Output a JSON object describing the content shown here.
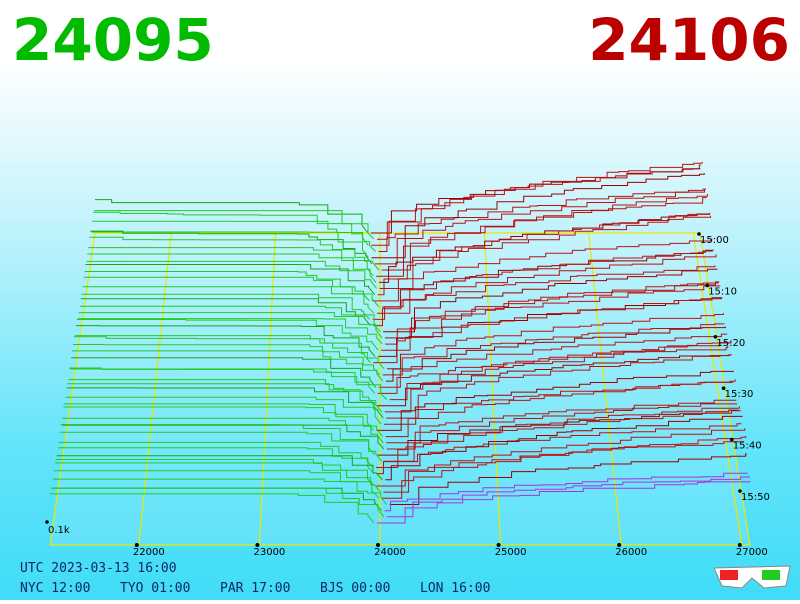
{
  "bid": 24095,
  "ask": 24106,
  "price_axis": {
    "ticks": [
      22000,
      23000,
      24000,
      25000,
      26000,
      27000
    ]
  },
  "time_axis": {
    "ticks": [
      "15:00",
      "15:10",
      "15:20",
      "15:30",
      "15:40",
      "15:50"
    ]
  },
  "volume_label": "0.1k",
  "utc": "UTC 2023-03-13 16:00",
  "clocks": [
    "NYC 12:00",
    "TYO 01:00",
    "PAR 17:00",
    "BJS 00:00",
    "LON 16:00"
  ]
}
